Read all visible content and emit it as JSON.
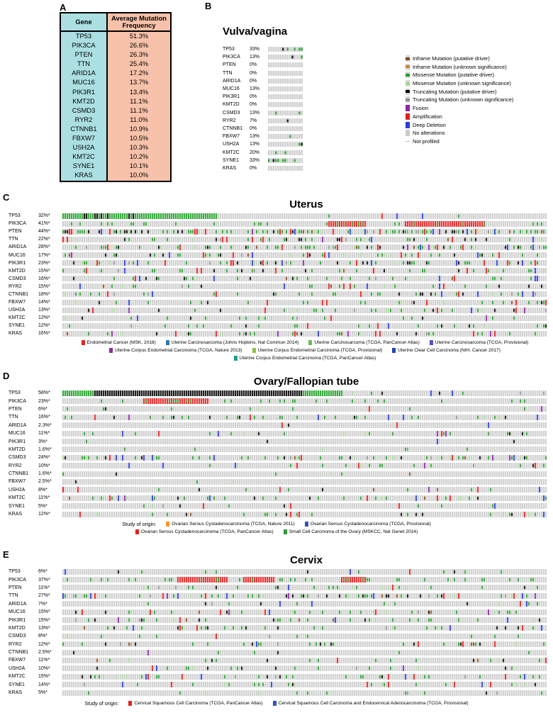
{
  "panels": {
    "a": {
      "label": "A"
    },
    "b": {
      "label": "B",
      "title": "Vulva/vagina"
    },
    "c": {
      "label": "C",
      "title": "Uterus"
    },
    "d": {
      "label": "D",
      "title": "Ovary/Fallopian tube"
    },
    "e": {
      "label": "E",
      "title": "Cervix"
    }
  },
  "alteration_legend": [
    {
      "label": "Inframe Mutation (putative driver)",
      "color": "#8b4513",
      "glyph": "tick"
    },
    {
      "label": "Inframe Mutation (unknown significance)",
      "color": "#c57f35",
      "glyph": "tick"
    },
    {
      "label": "Missense Mutation (putative driver)",
      "color": "#1ea025",
      "glyph": "tick"
    },
    {
      "label": "Missense Mutation (unknown significance)",
      "color": "#9ed98c",
      "glyph": "tick"
    },
    {
      "label": "Truncating Mutation (putative driver)",
      "color": "#000000",
      "glyph": "tick"
    },
    {
      "label": "Truncating Mutation (unknown significance)",
      "color": "#8f8f8f",
      "glyph": "tick"
    },
    {
      "label": "Fusion",
      "color": "#8e24aa",
      "glyph": "full"
    },
    {
      "label": "Amplification",
      "color": "#e21d1d",
      "glyph": "full"
    },
    {
      "label": "Deep Deletion",
      "color": "#2a3bd8",
      "glyph": "full"
    },
    {
      "label": "No alterations",
      "color": "#cbcbcb",
      "glyph": "empty"
    },
    {
      "label": "Not profiled",
      "color": "#c0c0c0",
      "glyph": "dash"
    }
  ],
  "track_colors": {
    "missense": "#1ea025",
    "missense_vus": "#9ed98c",
    "truncating": "#000000",
    "truncating_vus": "#8f8f8f",
    "inframe": "#8b4513",
    "amplification": "#e21d1d",
    "deep_deletion": "#2a3bd8",
    "fusion": "#8e24aa",
    "no_alteration": "#cbcbcb"
  },
  "chart_data": [
    {
      "type": "table",
      "title": "Average Mutation Frequency",
      "columns": [
        "Gene",
        "Average Mutation Frequency"
      ],
      "column_colors": {
        "gene": "#abdfe2",
        "frequency": "#f8c2aa"
      },
      "rows": [
        [
          "TP53",
          "51.3%"
        ],
        [
          "PIK3CA",
          "26.6%"
        ],
        [
          "PTEN",
          "26.3%"
        ],
        [
          "TTN",
          "25.4%"
        ],
        [
          "ARID1A",
          "17.2%"
        ],
        [
          "MUC16",
          "13.7%"
        ],
        [
          "PIK3R1",
          "13.4%"
        ],
        [
          "KMT2D",
          "11.1%"
        ],
        [
          "CSMD3",
          "11.1%"
        ],
        [
          "RYR2",
          "11.0%"
        ],
        [
          "CTNNB1",
          "10.9%"
        ],
        [
          "FBXW7",
          "10.5%"
        ],
        [
          "USH2A",
          "10.3%"
        ],
        [
          "KMT2C",
          "10.2%"
        ],
        [
          "SYNE1",
          "10.1%"
        ],
        [
          "KRAS",
          "10.0%"
        ]
      ]
    },
    {
      "type": "oncoprint",
      "panel": "B",
      "title": "Vulva/vagina",
      "genes": [
        "TP53",
        "PIK3CA",
        "PTEN",
        "TTN",
        "ARID1A",
        "MUC16",
        "PIK3R1",
        "KMT2D",
        "CSMD3",
        "RYR2",
        "CTNNB1",
        "FBXW7",
        "USH2A",
        "KMT2C",
        "SYNE1",
        "KRAS"
      ],
      "frequencies": [
        "33%",
        "13%",
        "0%",
        "0%",
        "0%",
        "13%",
        "0%",
        "0%",
        "13%",
        "7%",
        "0%",
        "13%",
        "13%",
        "20%",
        "33%",
        "0%"
      ]
    },
    {
      "type": "oncoprint",
      "panel": "C",
      "title": "Uterus",
      "genes": [
        "TP53",
        "PIK3CA",
        "PTEN",
        "TTN",
        "ARID1A",
        "MUC16",
        "PIK3R1",
        "KMT2D",
        "CSMD3",
        "RYR2",
        "CTNNB1",
        "FBXW7",
        "USH2A",
        "KMT2C",
        "SYNE1",
        "KRAS"
      ],
      "frequencies": [
        "32%*",
        "41%*",
        "44%*",
        "22%*",
        "28%*",
        "17%*",
        "23%*",
        "15%*",
        "16%*",
        "15%*",
        "18%*",
        "14%*",
        "13%*",
        "12%*",
        "12%*",
        "16%*"
      ],
      "study_of_origin": {
        "prefix": "",
        "items": [
          {
            "label": "Endometrial Cancer (MSK, 2018)",
            "color": "#e4231f"
          },
          {
            "label": "Uterine Carcinosarcoma (Johns Hopkins, Nat Commun 2014)",
            "color": "#2d7bb5"
          },
          {
            "label": "Uterine Carcinosarcoma (TCGA, PanCancer Atlas)",
            "color": "#6abf4b"
          },
          {
            "label": "Uterine Carcinosarcoma (TCGA, Provisional)",
            "color": "#4f52c8"
          },
          {
            "label": "Uterine Corpus Endometrial Carcinoma (TCGA, Nature 2013)",
            "color": "#8c2e9e"
          },
          {
            "label": "Uterine Corpus Endometrial Carcinoma (TCGA, Provisional)",
            "color": "#8bc34a"
          },
          {
            "label": "Uterine Clear Cell Carcinoma (NIH, Cancer 2017)",
            "color": "#2644b0"
          },
          {
            "label": "Uterine Corpus Endometrial Carcinoma (TCGA, PanCancer Atlas)",
            "color": "#1f9e8e"
          }
        ]
      }
    },
    {
      "type": "oncoprint",
      "panel": "D",
      "title": "Ovary/Fallopian tube",
      "genes": [
        "TP53",
        "PIK3CA",
        "PTEN",
        "TTN",
        "ARID1A",
        "MUC16",
        "PIK3R1",
        "KMT2D",
        "CSMD3",
        "RYR2",
        "CTNNB1",
        "FBXW7",
        "USH2A",
        "KMT2C",
        "SYNE1",
        "KRAS"
      ],
      "frequencies": [
        "58%*",
        "23%*",
        "6%*",
        "16%*",
        "2.3%*",
        "11%*",
        "3%*",
        "1.6%*",
        "24%*",
        "10%*",
        "1.6%*",
        "2.5%*",
        "8%*",
        "11%*",
        "5%*",
        "12%*"
      ],
      "study_of_origin": {
        "prefix": "Study of origin:",
        "items": [
          {
            "label": "Ovarian Serous Cystadenocarcinoma (TCGA, Nature 2011)",
            "color": "#f59a23"
          },
          {
            "label": "Ovarian Serous Cystadenocarcinoma (TCGA, Provisional)",
            "color": "#2d55c8"
          },
          {
            "label": "Ovarian Serous Cystadenocarcinoma (TCGA, PanCancer Atlas)",
            "color": "#e4231f"
          },
          {
            "label": "Small Cell Carcinoma of the Ovary (MSKCC, Nat Genet 2014)",
            "color": "#2e9e3a"
          }
        ]
      }
    },
    {
      "type": "oncoprint",
      "panel": "E",
      "title": "Cervix",
      "genes": [
        "TP53",
        "PIK3CA",
        "PTEN",
        "TTN",
        "ARID1A",
        "MUC16",
        "PIK3R1",
        "KMT2D",
        "CSMD3",
        "RYR2",
        "CTNNB1",
        "FBXW7",
        "USH2A",
        "KMT2C",
        "SYNE1",
        "KRAS"
      ],
      "frequencies": [
        "6%*",
        "37%*",
        "11%*",
        "27%*",
        "7%*",
        "15%*",
        "15%*",
        "13%*",
        "8%*",
        "12%*",
        "2.5%*",
        "11%*",
        "10%*",
        "15%*",
        "14%*",
        "5%*"
      ],
      "study_of_origin": {
        "prefix": "Study of origin:",
        "items": [
          {
            "label": "Cervical Squamous Cell Carcinoma (TCGA, PanCancer Atlas)",
            "color": "#e4231f"
          },
          {
            "label": "Cervical Squamous Cell Carcinoma and Endocervical Adenocarcinoma (TCGA, Provisional)",
            "color": "#2d55c8"
          }
        ]
      }
    }
  ]
}
